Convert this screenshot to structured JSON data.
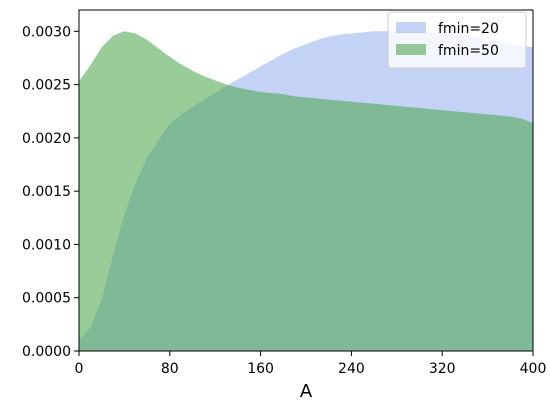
{
  "chart_data": {
    "type": "area",
    "title": "",
    "xlabel": "A",
    "ylabel": "",
    "xlim": [
      0,
      400
    ],
    "ylim": [
      0,
      0.0032
    ],
    "xticks": [
      0,
      80,
      160,
      240,
      320,
      400
    ],
    "xtick_labels": [
      "0",
      "80",
      "160",
      "240",
      "320",
      "400"
    ],
    "yticks": [
      0,
      0.0005,
      0.001,
      0.0015,
      0.002,
      0.0025,
      0.003
    ],
    "ytick_labels": [
      "0.0000",
      "0.0005",
      "0.0010",
      "0.0015",
      "0.0020",
      "0.0025",
      "0.0030"
    ],
    "grid": false,
    "legend_position": "top-right",
    "series": [
      {
        "name": "fmin=20",
        "color": "#6f94e6",
        "opacity": 0.42,
        "x": [
          0,
          10,
          20,
          30,
          40,
          50,
          60,
          70,
          80,
          90,
          100,
          110,
          120,
          130,
          140,
          150,
          160,
          170,
          180,
          190,
          200,
          210,
          220,
          230,
          240,
          250,
          260,
          270,
          280,
          290,
          300,
          310,
          320,
          330,
          340,
          350,
          360,
          370,
          380,
          390,
          400
        ],
        "y": [
          0.0001,
          0.00022,
          0.00048,
          0.0009,
          0.00128,
          0.00158,
          0.00181,
          0.00198,
          0.00213,
          0.00222,
          0.00229,
          0.00236,
          0.00242,
          0.00249,
          0.00255,
          0.00261,
          0.00267,
          0.00273,
          0.00279,
          0.00284,
          0.00288,
          0.00292,
          0.00295,
          0.00297,
          0.00298,
          0.00299,
          0.003,
          0.003,
          0.003,
          0.003,
          0.003,
          0.00299,
          0.00298,
          0.00297,
          0.00296,
          0.00294,
          0.00292,
          0.0029,
          0.00288,
          0.00286,
          0.00285
        ]
      },
      {
        "name": "fmin=50",
        "color": "#4ca64c",
        "opacity": 0.57,
        "x": [
          0,
          10,
          20,
          30,
          40,
          50,
          60,
          70,
          80,
          90,
          100,
          110,
          120,
          130,
          140,
          150,
          160,
          170,
          180,
          190,
          200,
          210,
          220,
          230,
          240,
          250,
          260,
          270,
          280,
          290,
          300,
          310,
          320,
          330,
          340,
          350,
          360,
          370,
          380,
          390,
          400
        ],
        "y": [
          0.00253,
          0.00268,
          0.00285,
          0.00296,
          0.003,
          0.00298,
          0.00292,
          0.00284,
          0.00276,
          0.00269,
          0.00263,
          0.00258,
          0.00254,
          0.0025,
          0.00247,
          0.00245,
          0.00243,
          0.00242,
          0.00241,
          0.00239,
          0.00238,
          0.00237,
          0.00236,
          0.00235,
          0.00234,
          0.00233,
          0.00232,
          0.00231,
          0.0023,
          0.00229,
          0.00228,
          0.00227,
          0.00226,
          0.00225,
          0.00224,
          0.00223,
          0.00222,
          0.00221,
          0.0022,
          0.00218,
          0.00214
        ]
      }
    ]
  }
}
